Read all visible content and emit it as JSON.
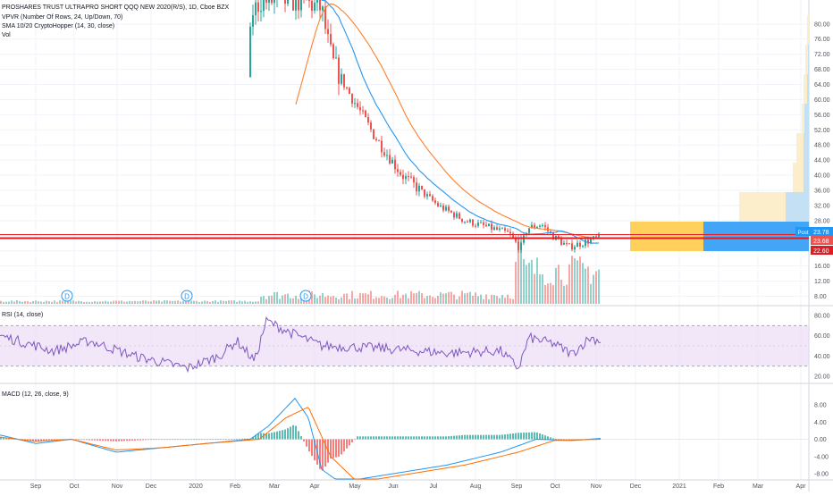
{
  "colors": {
    "up": "#26a69a",
    "down": "#ef5350",
    "sma_fast": "#2196f3",
    "sma_slow": "#ff7f2a",
    "rsi_line": "#7e57c2",
    "rsi_band": "#e9d6f5",
    "macd_line": "#2196f3",
    "signal_line": "#ff6d00",
    "hline": "#e21b23",
    "vp_up": "#ffd05b",
    "vp_down": "#42a5f5",
    "vp_up_light": "#fdeecb",
    "vp_down_light": "#c3e0f5",
    "vol_up": "#26a69a",
    "vol_down": "#ef5350"
  },
  "legend": {
    "symbol_line": "PROSHARES TRUST ULTRAPRO SHORT QQQ NEW 2020(R/S), 1D, Cboe BZX",
    "vpvr": "VPVR (Number Of Rows, 24, Up/Down, 70)",
    "sma": "SMA 10/20 CryptoHopper (14, 30, close)",
    "vol": "Vol"
  },
  "price_badges": {
    "post_label": "Post",
    "post_value": "23.78",
    "close_value": "23.68",
    "line_value": "22.60"
  },
  "dividend_marker": "D",
  "rsi_legend": "RSI (14, close)",
  "macd_legend": "MACD (12, 26, close, 9)",
  "chart_data": [
    {
      "type": "line",
      "name": "price",
      "x_axis": [
        "Sep",
        "Oct",
        "Nov",
        "Dec",
        "2020",
        "Feb",
        "Mar",
        "Apr",
        "May",
        "Jun",
        "Jul",
        "Aug",
        "Sep",
        "Oct",
        "Nov",
        "Dec",
        "2021",
        "Feb",
        "Mar",
        "Apr"
      ],
      "y_ticks": [
        "80.00",
        "76.00",
        "72.00",
        "68.00",
        "64.00",
        "60.00",
        "56.00",
        "52.00",
        "48.00",
        "44.00",
        "40.00",
        "36.00",
        "32.00",
        "28.00",
        "24.00",
        "20.00",
        "16.00",
        "12.00",
        "8.00"
      ],
      "close_series": [
        {
          "month": "Feb",
          "value": 83
        },
        {
          "month": "Mar",
          "value": 82
        },
        {
          "month": "Apr",
          "value": 64
        },
        {
          "month": "May",
          "value": 50
        },
        {
          "month": "Jun",
          "value": 40
        },
        {
          "month": "Jul",
          "value": 32
        },
        {
          "month": "Aug",
          "value": 27
        },
        {
          "month": "Sep",
          "value": 24
        },
        {
          "month": "Oct",
          "value": 23
        },
        {
          "month": "Nov",
          "value": 23.7
        }
      ],
      "horizontal_line": 22.6
    },
    {
      "type": "line",
      "name": "rsi",
      "y_ticks": [
        "80.00",
        "60.00",
        "40.00",
        "20.00"
      ],
      "band": [
        30,
        70
      ]
    },
    {
      "type": "line",
      "name": "macd",
      "y_ticks": [
        "8.00",
        "4.00",
        "0.00",
        "-4.00",
        "-8.00"
      ]
    }
  ]
}
